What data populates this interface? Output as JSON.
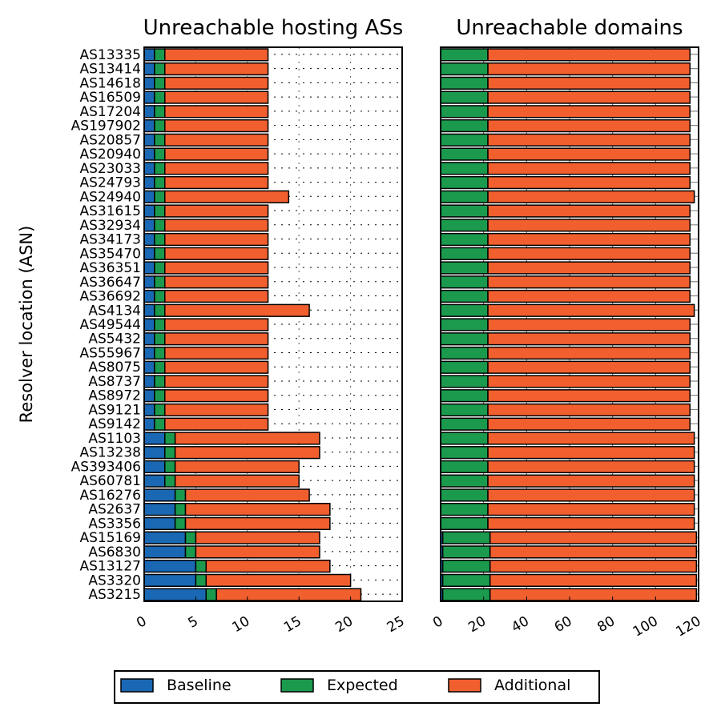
{
  "chart_data": [
    {
      "type": "bar",
      "orientation": "horizontal",
      "stacked": true,
      "title": "Unreachable hosting ASs",
      "ylabel": "Resolver location (ASN)",
      "xlabel": "",
      "xlim": [
        0,
        25
      ],
      "xticks": [
        "0",
        "5",
        "10",
        "15",
        "20",
        "25"
      ],
      "grid": "dotted",
      "categories": [
        "AS13335",
        "AS13414",
        "AS14618",
        "AS16509",
        "AS17204",
        "AS197902",
        "AS20857",
        "AS20940",
        "AS23033",
        "AS24793",
        "AS24940",
        "AS31615",
        "AS32934",
        "AS34173",
        "AS35470",
        "AS36351",
        "AS36647",
        "AS36692",
        "AS4134",
        "AS49544",
        "AS5432",
        "AS55967",
        "AS8075",
        "AS8737",
        "AS8972",
        "AS9121",
        "AS9142",
        "AS1103",
        "AS13238",
        "AS393406",
        "AS60781",
        "AS16276",
        "AS2637",
        "AS3356",
        "AS15169",
        "AS6830",
        "AS13127",
        "AS3320",
        "AS3215"
      ],
      "series": [
        {
          "name": "Baseline",
          "values": [
            1,
            1,
            1,
            1,
            1,
            1,
            1,
            1,
            1,
            1,
            1,
            1,
            1,
            1,
            1,
            1,
            1,
            1,
            1,
            1,
            1,
            1,
            1,
            1,
            1,
            1,
            1,
            2,
            2,
            2,
            2,
            3,
            3,
            3,
            4,
            4,
            5,
            5,
            6
          ]
        },
        {
          "name": "Expected",
          "values": [
            1,
            1,
            1,
            1,
            1,
            1,
            1,
            1,
            1,
            1,
            1,
            1,
            1,
            1,
            1,
            1,
            1,
            1,
            1,
            1,
            1,
            1,
            1,
            1,
            1,
            1,
            1,
            1,
            1,
            1,
            1,
            1,
            1,
            1,
            1,
            1,
            1,
            1,
            1
          ]
        },
        {
          "name": "Additional",
          "values": [
            10,
            10,
            10,
            10,
            10,
            10,
            10,
            10,
            10,
            10,
            12,
            10,
            10,
            10,
            10,
            10,
            10,
            10,
            14,
            10,
            10,
            10,
            10,
            10,
            10,
            10,
            10,
            14,
            14,
            12,
            12,
            12,
            14,
            14,
            12,
            12,
            12,
            14,
            14
          ]
        }
      ]
    },
    {
      "type": "bar",
      "orientation": "horizontal",
      "stacked": true,
      "title": "Unreachable domains",
      "xlabel": "",
      "xlim": [
        0,
        120
      ],
      "xticks": [
        "0",
        "20",
        "40",
        "60",
        "80",
        "100",
        "120"
      ],
      "grid": "solid",
      "series": [
        {
          "name": "Baseline",
          "values": [
            0,
            0,
            0,
            0,
            0,
            0,
            0,
            0,
            0,
            0,
            0,
            0,
            0,
            0,
            0,
            0,
            0,
            0,
            0,
            0,
            0,
            0,
            0,
            0,
            0,
            0,
            0,
            0,
            0,
            0,
            0,
            0,
            0,
            0,
            1,
            1,
            1,
            1,
            1
          ]
        },
        {
          "name": "Expected",
          "values": [
            22,
            22,
            22,
            22,
            22,
            22,
            22,
            22,
            22,
            22,
            22,
            22,
            22,
            22,
            22,
            22,
            22,
            22,
            22,
            22,
            22,
            22,
            22,
            22,
            22,
            22,
            22,
            22,
            22,
            22,
            22,
            22,
            22,
            22,
            22,
            22,
            22,
            22,
            22
          ]
        },
        {
          "name": "Additional",
          "values": [
            94,
            94,
            94,
            94,
            94,
            94,
            94,
            94,
            94,
            94,
            96,
            94,
            94,
            94,
            94,
            94,
            94,
            94,
            96,
            94,
            94,
            94,
            94,
            94,
            94,
            94,
            94,
            96,
            96,
            96,
            96,
            96,
            96,
            96,
            96,
            96,
            96,
            96,
            96
          ]
        }
      ]
    }
  ],
  "legend": {
    "placement": "bottom",
    "items": [
      {
        "label": "Baseline",
        "color": "#1a68b3"
      },
      {
        "label": "Expected",
        "color": "#1b9a4e"
      },
      {
        "label": "Additional",
        "color": "#f25f2f"
      }
    ]
  }
}
